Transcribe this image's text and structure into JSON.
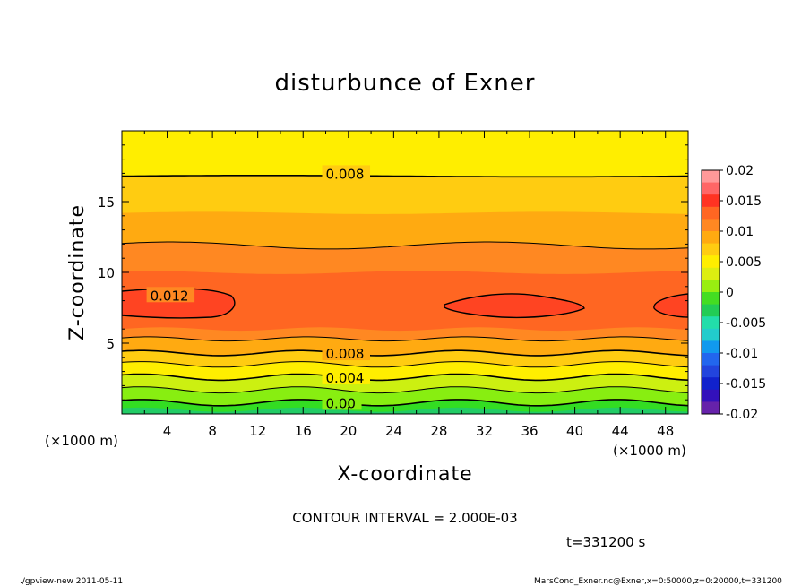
{
  "chart_data": {
    "type": "heatmap",
    "title": "disturbunce of Exner",
    "xlabel": "X-coordinate",
    "ylabel": "Z-coordinate",
    "x_unit": "(×1000 m)",
    "y_unit": "(×1000 m)",
    "xlim": [
      0,
      50
    ],
    "ylim": [
      0,
      20
    ],
    "x_ticks": [
      "4",
      "8",
      "12",
      "16",
      "20",
      "24",
      "28",
      "32",
      "36",
      "40",
      "44",
      "48"
    ],
    "y_ticks": [
      "5",
      "10",
      "15"
    ],
    "colorbar_ticks": [
      "0.02",
      "0.015",
      "0.01",
      "0.005",
      "0",
      "-0.005",
      "-0.01",
      "-0.015",
      "-0.02"
    ],
    "colorbar_range": [
      -0.02,
      0.02
    ],
    "contour_labels": [
      {
        "text": "0.008",
        "x": 18,
        "z": 17
      },
      {
        "text": "0.012",
        "x": 2.5,
        "z": 8.4
      },
      {
        "text": "0.008",
        "x": 18,
        "z": 4.3
      },
      {
        "text": "0.004",
        "x": 18,
        "z": 2.6
      },
      {
        "text": "0.00",
        "x": 18,
        "z": 0.8
      }
    ],
    "contour_interval": "CONTOUR INTERVAL = 2.000E-03",
    "time": "t=331200 s",
    "colors": {
      "c_neg": "#22cc66",
      "c0": "#33dd22",
      "c1": "#88ee11",
      "c2": "#ccf011",
      "c3": "#ffee00",
      "c4": "#ffcc11",
      "c5": "#ffaa11",
      "c6": "#ff8822",
      "c7": "#ff6622",
      "c8": "#ff4422"
    }
  },
  "footer": {
    "left": "./gpview-new   2011-05-11",
    "right": "MarsCond_Exner.nc@Exner,x=0:50000,z=0:20000,t=331200"
  }
}
